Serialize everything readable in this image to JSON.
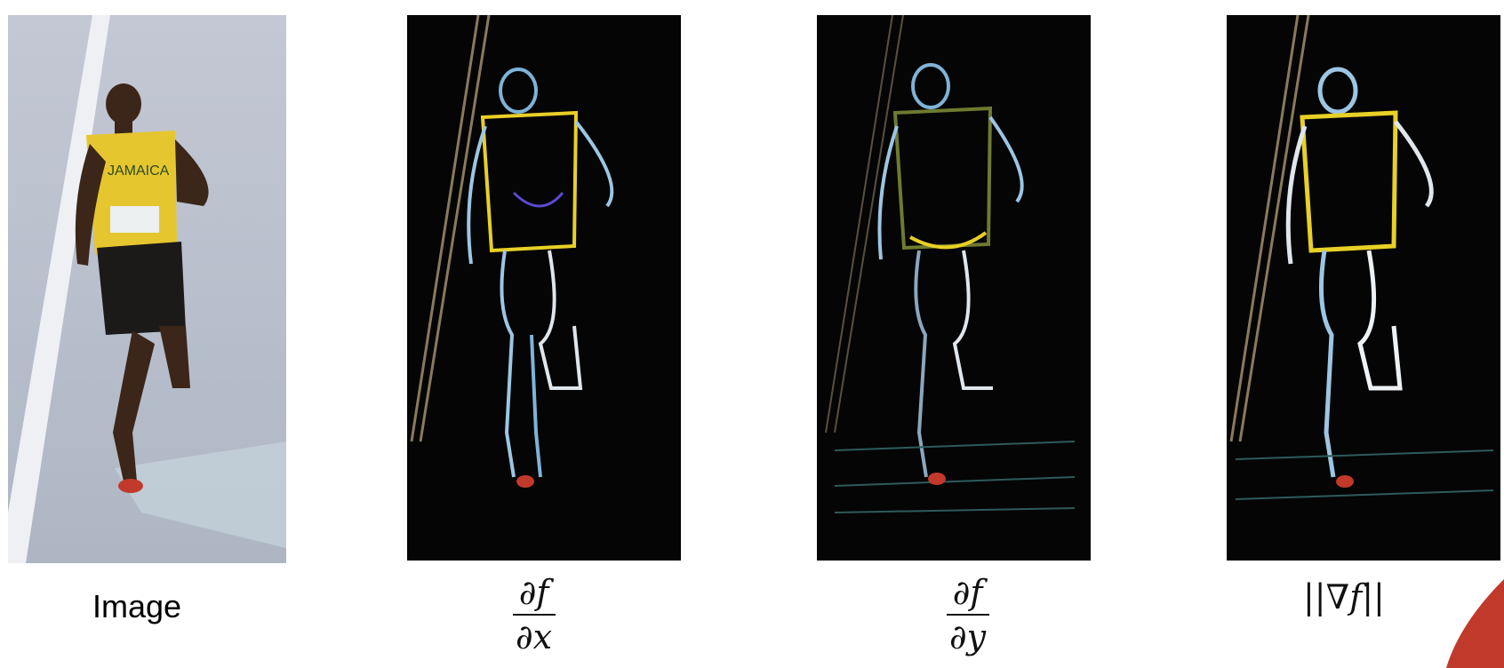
{
  "panels": [
    {
      "caption": "Image"
    },
    {
      "numerator": "∂f",
      "denominator": "∂x"
    },
    {
      "numerator": "∂f",
      "denominator": "∂y"
    },
    {
      "bars_left": "||",
      "nabla": "∇",
      "var": "f",
      "bars_right": "||"
    }
  ],
  "colors": {
    "track": "#b9bfcc",
    "jersey": "#e6c62f",
    "edge_dark": "#050505",
    "edge_blue": "#7fb3d8",
    "edge_yellow": "#e8d026",
    "accent": "#c0392b"
  }
}
